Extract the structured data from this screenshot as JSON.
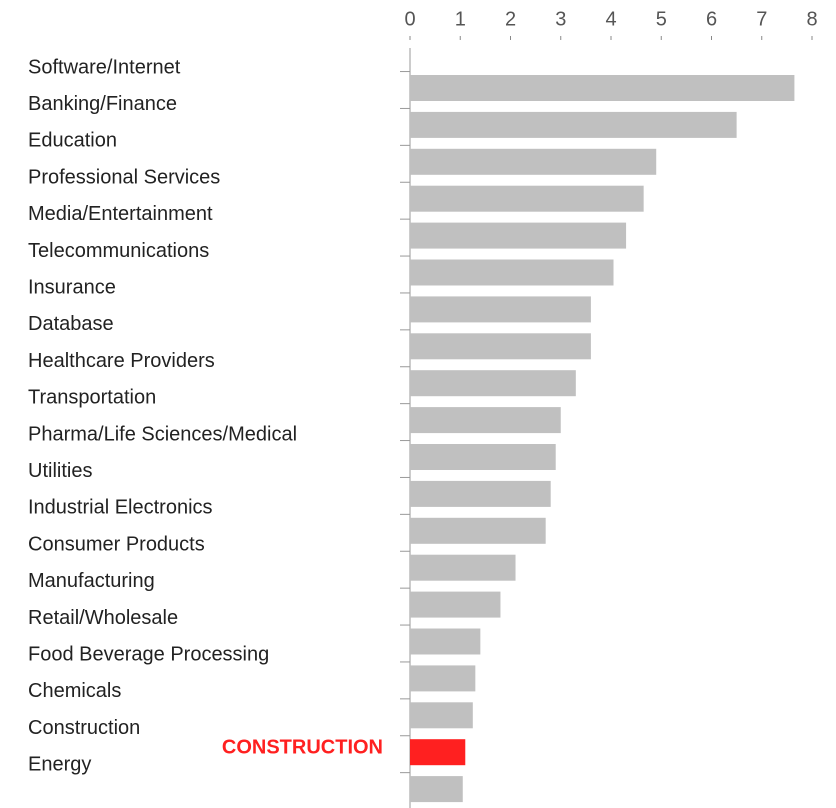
{
  "chart_data": {
    "type": "hbar",
    "categories": [
      "Software/Internet",
      "Banking/Finance",
      "Education",
      "Professional Services",
      "Media/Entertainment",
      "Telecommunications",
      "Insurance",
      "Database",
      "Healthcare Providers",
      "Transportation",
      "Pharma/Life Sciences/Medical",
      "Utilities",
      "Industrial Electronics",
      "Consumer Products",
      "Manufacturing",
      "Retail/Wholesale",
      "Food Beverage Processing",
      "Chemicals",
      "Construction",
      "Energy"
    ],
    "values": [
      7.65,
      6.5,
      4.9,
      4.65,
      4.3,
      4.05,
      3.6,
      3.6,
      3.3,
      3.0,
      2.9,
      2.8,
      2.7,
      2.1,
      1.8,
      1.4,
      1.3,
      1.25,
      1.1,
      1.05
    ],
    "colors": [
      "#c0c0c0",
      "#c0c0c0",
      "#c0c0c0",
      "#c0c0c0",
      "#c0c0c0",
      "#c0c0c0",
      "#c0c0c0",
      "#c0c0c0",
      "#c0c0c0",
      "#c0c0c0",
      "#c0c0c0",
      "#c0c0c0",
      "#c0c0c0",
      "#c0c0c0",
      "#c0c0c0",
      "#c0c0c0",
      "#c0c0c0",
      "#c0c0c0",
      "#ff2020",
      "#c0c0c0"
    ],
    "annotation": "CONSTRUCTION",
    "annotation_color": "#ff2020",
    "xlim": [
      0,
      8
    ],
    "xticks": [
      0,
      1,
      2,
      3,
      4,
      5,
      6,
      7,
      8
    ],
    "grid": false
  }
}
